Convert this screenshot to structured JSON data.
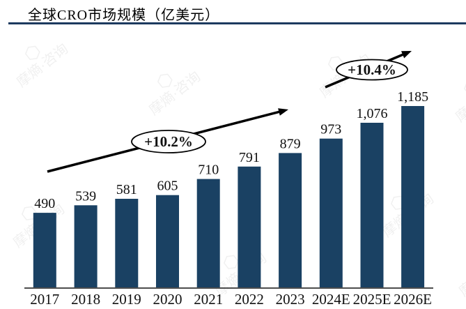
{
  "header": {
    "title": "全球CRO市场规模（亿美元）"
  },
  "watermark": {
    "text": "摩熵·咨询",
    "icon": "hexagon-logo"
  },
  "chart_data": {
    "type": "bar",
    "title": "全球CRO市场规模（亿美元）",
    "unit": "亿美元",
    "categories": [
      "2017",
      "2018",
      "2019",
      "2020",
      "2021",
      "2022",
      "2023",
      "2024E",
      "2025E",
      "2026E"
    ],
    "values": [
      490,
      539,
      581,
      605,
      710,
      791,
      879,
      973,
      1076,
      1185
    ],
    "value_labels": [
      "490",
      "539",
      "581",
      "605",
      "710",
      "791",
      "879",
      "973",
      "1,076",
      "1,185"
    ],
    "annotations": [
      {
        "label": "+10.2%"
      },
      {
        "label": "+10.4%"
      }
    ],
    "xlabel": "",
    "ylabel": "",
    "ylim": [
      0,
      1250
    ],
    "grid": false,
    "legend": false,
    "bar_color": "#1a4163",
    "axis_color": "#4d4d4d",
    "text_color": "#111111",
    "arrow_color": "#000000"
  }
}
